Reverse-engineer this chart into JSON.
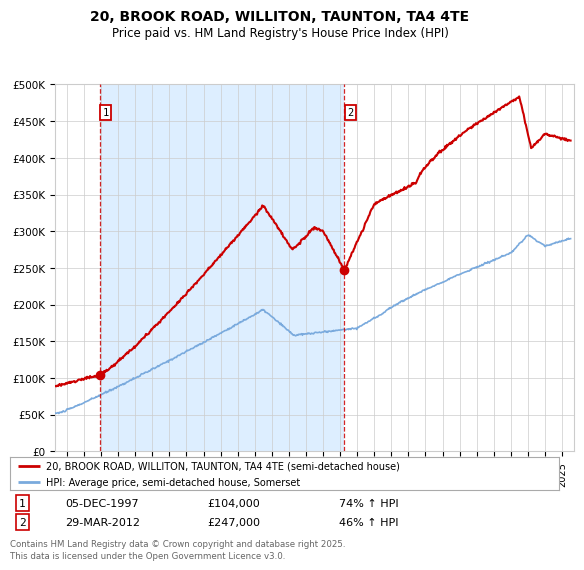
{
  "title": "20, BROOK ROAD, WILLITON, TAUNTON, TA4 4TE",
  "subtitle": "Price paid vs. HM Land Registry's House Price Index (HPI)",
  "sale1_date": "05-DEC-1997",
  "sale1_price": 104000,
  "sale1_label": "74% ↑ HPI",
  "sale2_date": "29-MAR-2012",
  "sale2_price": 247000,
  "sale2_label": "46% ↑ HPI",
  "legend_line1": "20, BROOK ROAD, WILLITON, TAUNTON, TA4 4TE (semi-detached house)",
  "legend_line2": "HPI: Average price, semi-detached house, Somerset",
  "footer": "Contains HM Land Registry data © Crown copyright and database right 2025.\nThis data is licensed under the Open Government Licence v3.0.",
  "hpi_color": "#7aaadd",
  "price_color": "#cc0000",
  "dashed_color": "#cc0000",
  "fill_color": "#ddeeff",
  "bg_color": "#ffffff",
  "grid_color": "#cccccc",
  "ylim": [
    0,
    500000
  ],
  "yticks": [
    0,
    50000,
    100000,
    150000,
    200000,
    250000,
    300000,
    350000,
    400000,
    450000,
    500000
  ],
  "sale1_x": 1997.92,
  "sale2_x": 2012.25,
  "xlim_start": 1995.3,
  "xlim_end": 2025.7
}
